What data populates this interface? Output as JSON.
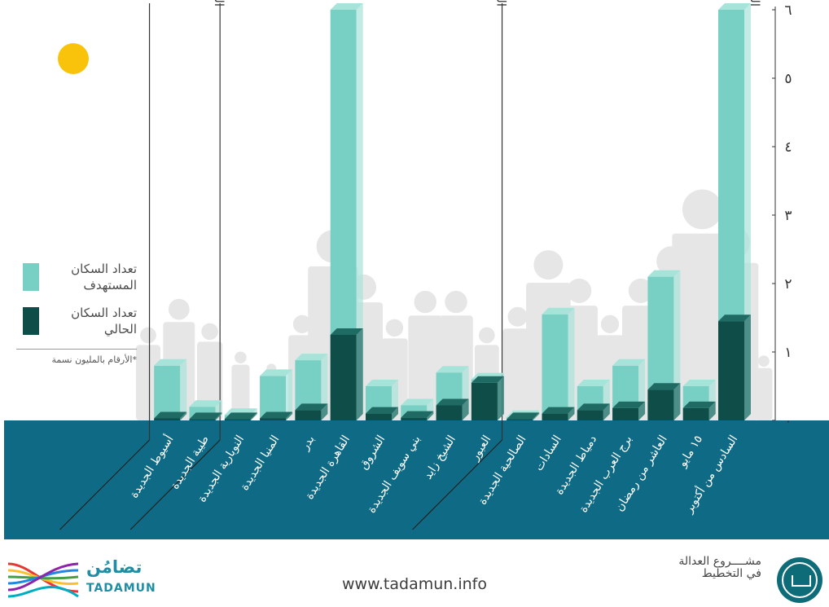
{
  "chart_data": {
    "type": "bar",
    "title": "",
    "xlabel": "",
    "ylabel": "",
    "ylim": [
      0,
      6
    ],
    "yticks": [
      "٠",
      "١",
      "٢",
      "٣",
      "٤",
      "٥",
      "٦"
    ],
    "grid": false,
    "legend_position": "left",
    "categories": [
      "السادس من أكتوبر",
      "١٥ مايو",
      "العاشر من رمضان",
      "برج العرب الجديدة",
      "دمياط الجديدة",
      "السادات",
      "الصالحية الجديدة",
      "العبور",
      "الشيخ زايد",
      "بني سويف الجديدة",
      "الشروق",
      "القاهرة الجديدة",
      "بدر",
      "المنيا الجديدة",
      "النوبارية الجديدة",
      "طيبة الجديدة",
      "أسيوط الجديدة"
    ],
    "series": [
      {
        "name": "تعداد السكان المستهدف",
        "color": "#78cfc3",
        "values": [
          6.0,
          0.5,
          2.1,
          0.8,
          0.5,
          1.55,
          0.05,
          0.6,
          0.7,
          0.22,
          0.5,
          6.0,
          0.88,
          0.65,
          0.08,
          0.2,
          0.8
        ]
      },
      {
        "name": "تعداد السكان الحالي",
        "color": "#0e4d48",
        "values": [
          1.45,
          0.18,
          0.45,
          0.18,
          0.15,
          0.1,
          0.02,
          0.55,
          0.22,
          0.04,
          0.1,
          1.25,
          0.15,
          0.03,
          0.02,
          0.02,
          0.03
        ]
      }
    ],
    "groups": [
      {
        "label": "الجيل الأول",
        "from": 0,
        "to": 6
      },
      {
        "label": "الجيل الثاني",
        "from": 7,
        "to": 14
      },
      {
        "label": "الجيل الثالث",
        "from": 15,
        "to": 16
      }
    ],
    "note": "*الأرقام بالمليون نسمة"
  },
  "legend": {
    "target_label": "تعداد السكان المستهدف",
    "current_label": "تعداد السكان الحالي",
    "note": "*الأرقام بالمليون نسمة"
  },
  "footer": {
    "url": "www.tadamun.info",
    "brand_ar": "تضامُن",
    "brand_en": "TADAMUN",
    "project": "مشــــروع العدالة في التخطيط"
  },
  "colors": {
    "band": "#0f6b85",
    "sun": "#f8c30a",
    "silhouette": "#e6e6e6"
  }
}
